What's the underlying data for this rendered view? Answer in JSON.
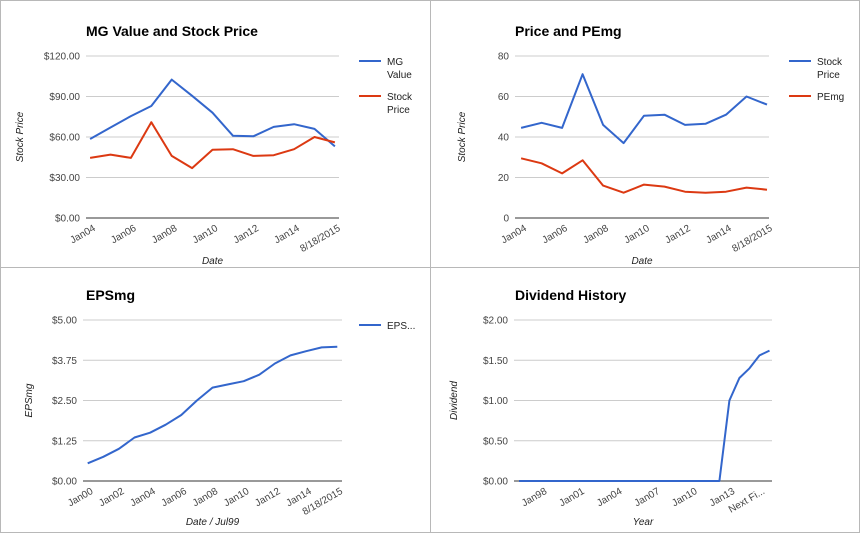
{
  "chart_data": [
    {
      "type": "line",
      "title": "MG Value and Stock Price",
      "xlabel": "Date",
      "ylabel": "Stock Price",
      "ylim": [
        0,
        120
      ],
      "yticks": [
        "$0.00",
        "$30.00",
        "$60.00",
        "$90.00",
        "$120.00"
      ],
      "yticks_values": [
        0,
        30,
        60,
        90,
        120
      ],
      "x_tick_labels": [
        "Jan04",
        "Jan06",
        "Jan08",
        "Jan10",
        "Jan12",
        "Jan14",
        "8/18/2015"
      ],
      "x_tick_positions": [
        0,
        2,
        4,
        6,
        8,
        10,
        12
      ],
      "x": [
        0,
        1,
        2,
        3,
        4,
        5,
        6,
        7,
        8,
        9,
        10,
        11,
        12
      ],
      "series": [
        {
          "name": "MG Value",
          "legend_lines": [
            "MG",
            "Value"
          ],
          "color": "#3366cc",
          "values": [
            58.5,
            67,
            75.5,
            83,
            102.5,
            90.5,
            78,
            61,
            60.5,
            67.5,
            69.5,
            66,
            53
          ]
        },
        {
          "name": "Stock Price",
          "legend_lines": [
            "Stock",
            "Price"
          ],
          "color": "#dc3912",
          "values": [
            44.5,
            47,
            44.5,
            71,
            46,
            37,
            50.5,
            51,
            46,
            46.5,
            51,
            60,
            56
          ]
        }
      ],
      "grid": true,
      "legend_position": "right"
    },
    {
      "type": "line",
      "title": "Price and PEmg",
      "xlabel": "Date",
      "ylabel": "Stock Price",
      "ylim": [
        0,
        80
      ],
      "yticks": [
        "0",
        "20",
        "40",
        "60",
        "80"
      ],
      "yticks_values": [
        0,
        20,
        40,
        60,
        80
      ],
      "x_tick_labels": [
        "Jan04",
        "Jan06",
        "Jan08",
        "Jan10",
        "Jan12",
        "Jan14",
        "8/18/2015"
      ],
      "x_tick_positions": [
        0,
        2,
        4,
        6,
        8,
        10,
        12
      ],
      "x": [
        0,
        1,
        2,
        3,
        4,
        5,
        6,
        7,
        8,
        9,
        10,
        11,
        12
      ],
      "series": [
        {
          "name": "Stock Price",
          "legend_lines": [
            "Stock",
            "Price"
          ],
          "color": "#3366cc",
          "values": [
            44.5,
            47,
            44.5,
            71,
            46,
            37,
            50.5,
            51,
            46,
            46.5,
            51,
            60,
            56
          ]
        },
        {
          "name": "PEmg",
          "legend_lines": [
            "PEmg"
          ],
          "color": "#dc3912",
          "values": [
            29.5,
            27,
            22,
            28.5,
            16,
            12.5,
            16.5,
            15.5,
            13,
            12.5,
            13,
            15,
            14
          ]
        }
      ],
      "grid": true,
      "legend_position": "right"
    },
    {
      "type": "line",
      "title": "EPSmg",
      "xlabel": "Date / Jul99",
      "ylabel": "EPSmg",
      "ylim": [
        0,
        5
      ],
      "yticks": [
        "$0.00",
        "$1.25",
        "$2.50",
        "$3.75",
        "$5.00"
      ],
      "yticks_values": [
        0,
        1.25,
        2.5,
        3.75,
        5
      ],
      "x_tick_labels": [
        "Jan00",
        "Jan02",
        "Jan04",
        "Jan06",
        "Jan08",
        "Jan10",
        "Jan12",
        "Jan14",
        "8/18/2015"
      ],
      "x_tick_positions": [
        0,
        2,
        4,
        6,
        8,
        10,
        12,
        14,
        16
      ],
      "x": [
        0,
        1,
        2,
        3,
        4,
        5,
        6,
        7,
        8,
        9,
        10,
        11,
        12,
        13,
        14,
        15,
        16
      ],
      "series": [
        {
          "name": "EPSmg",
          "legend_lines": [
            "EPS..."
          ],
          "color": "#3366cc",
          "values": [
            0.55,
            0.75,
            1.0,
            1.35,
            1.5,
            1.75,
            2.05,
            2.5,
            2.9,
            3.0,
            3.1,
            3.3,
            3.65,
            3.9,
            4.03,
            4.15,
            4.17
          ]
        }
      ],
      "grid": true,
      "legend_position": "right"
    },
    {
      "type": "line",
      "title": "Dividend History",
      "xlabel": "Year",
      "ylabel": "Dividend",
      "ylim": [
        0,
        2
      ],
      "yticks": [
        "$0.00",
        "$0.50",
        "$1.00",
        "$1.50",
        "$2.00"
      ],
      "yticks_values": [
        0,
        0.5,
        1,
        1.5,
        2
      ],
      "x_tick_labels": [
        "Jan98",
        "Jan01",
        "Jan04",
        "Jan07",
        "Jan10",
        "Jan13",
        "Next Fi..."
      ],
      "x_tick_positions": [
        0,
        3,
        6,
        9,
        12,
        15,
        17.4
      ],
      "x": [
        -1.8,
        14.2,
        15.0,
        15.8,
        16.6,
        17.4,
        18.2
      ],
      "series": [
        {
          "name": "Dividend",
          "color": "#3366cc",
          "values": [
            0,
            0,
            1.0,
            1.28,
            1.4,
            1.56,
            1.62
          ]
        }
      ],
      "grid": true,
      "legend_position": "none"
    }
  ]
}
